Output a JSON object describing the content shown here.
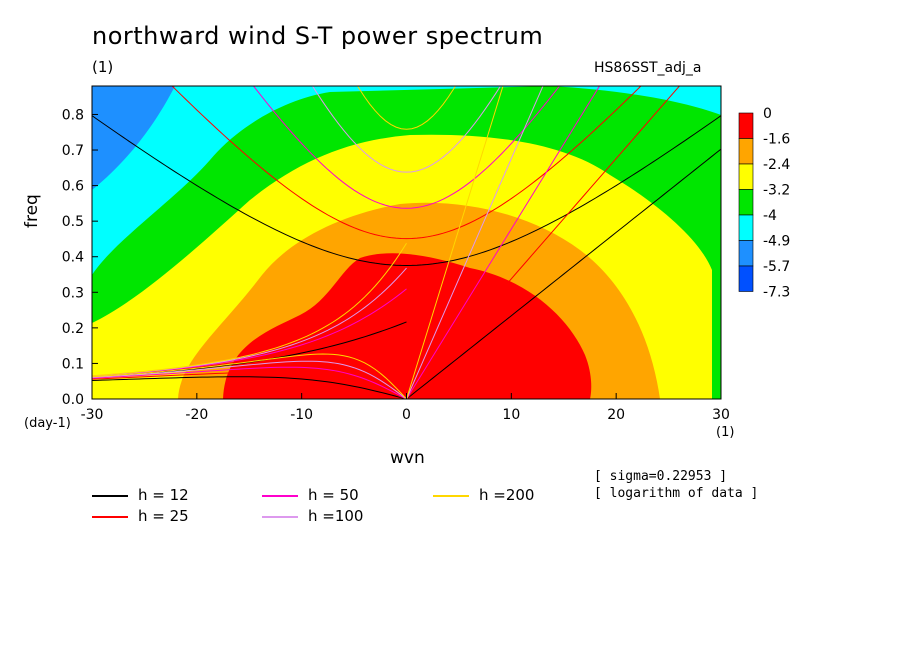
{
  "header": {
    "title": "northward wind S-T power spectrum",
    "subtitle": "(1)",
    "run_name": "HS86SST_adj_a"
  },
  "notes": {
    "sigma": "[ sigma=0.22953 ]",
    "log": "[ logarithm of data ]"
  },
  "chart_data": {
    "type": "heatmap",
    "title": "northward wind S-T power spectrum",
    "xlabel": "wvn",
    "x_unit": "(1)",
    "ylabel": "freq",
    "y_unit": "(day-1)",
    "xlim": [
      -30,
      30
    ],
    "ylim": [
      0,
      0.88
    ],
    "xticks": [
      -30,
      -20,
      -10,
      0,
      10,
      20,
      30
    ],
    "yticks": [
      0.0,
      0.1,
      0.2,
      0.3,
      0.4,
      0.5,
      0.6,
      0.7,
      0.8
    ],
    "ytick_labels": [
      "0.0",
      "0.1",
      "0.2",
      "0.3",
      "0.4",
      "0.5",
      "0.6",
      "0.7",
      "0.8"
    ],
    "contour_levels": [
      {
        "label": "0",
        "color": "#ff0000"
      },
      {
        "label": "-1.6",
        "color": "#ffa500"
      },
      {
        "label": "-2.4",
        "color": "#ffff00"
      },
      {
        "label": "-3.2",
        "color": "#00e600"
      },
      {
        "label": "-4",
        "color": "#00ffff"
      },
      {
        "label": "-4.9",
        "color": "#1e90ff"
      },
      {
        "label": "-5.7",
        "color": "#0050ff"
      },
      {
        "label": "-7.3",
        "color": null
      }
    ],
    "dispersion_curves": [
      {
        "name": "h = 12",
        "h": 12,
        "color": "#000000"
      },
      {
        "name": "h = 25",
        "h": 25,
        "color": "#ff0000"
      },
      {
        "name": "h = 50",
        "h": 50,
        "color": "#ff00cc"
      },
      {
        "name": "h =100",
        "h": 100,
        "color": "#dd99ee"
      },
      {
        "name": "h =200",
        "h": 200,
        "color": "#ffd700"
      }
    ],
    "region_colors": {
      "level_-5.7": "#1e90ff",
      "level_-4.9": "#00ffff",
      "level_-4": "#00e600",
      "level_-3.2": "#ffff00",
      "level_-2.4": "#ffa500",
      "level_-1.6": "#ff0000"
    }
  }
}
